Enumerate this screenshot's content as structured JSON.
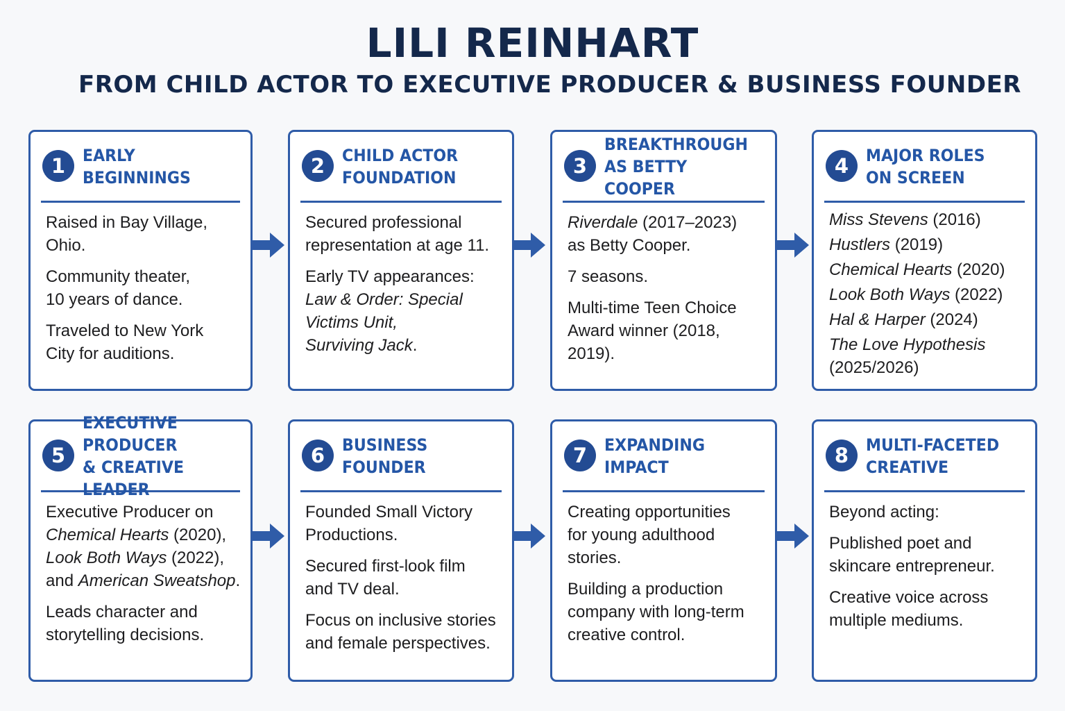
{
  "title": "LILI REINHART",
  "subtitle": "FROM CHILD ACTOR TO EXECUTIVE PRODUCER & BUSINESS FOUNDER",
  "accent_color": "#2f5ca8",
  "steps": [
    {
      "number": "1",
      "title": "EARLY BEGINNINGS",
      "paragraphs": [
        [
          {
            "t": "Raised in Bay Village,\nOhio."
          }
        ],
        [
          {
            "t": "Community theater,\n10 years of dance."
          }
        ],
        [
          {
            "t": "Traveled to New York\nCity for auditions."
          }
        ]
      ]
    },
    {
      "number": "2",
      "title": "CHILD ACTOR\nFOUNDATION",
      "paragraphs": [
        [
          {
            "t": "Secured professional\nrepresentation at age 11."
          }
        ],
        [
          {
            "t": "Early TV appearances:\n"
          },
          {
            "t": "Law & Order: Special\nVictims Unit,\nSurviving Jack",
            "i": true
          },
          {
            "t": "."
          }
        ]
      ]
    },
    {
      "number": "3",
      "title": "BREAKTHROUGH\nAS BETTY COOPER",
      "paragraphs": [
        [
          {
            "t": "Riverdale",
            "i": true
          },
          {
            "t": " (2017–2023)\nas Betty Cooper."
          }
        ],
        [
          {
            "t": "7 seasons."
          }
        ],
        [
          {
            "t": "Multi-time Teen Choice\nAward winner (2018, 2019)."
          }
        ]
      ]
    },
    {
      "number": "4",
      "title": "MAJOR ROLES\nON SCREEN",
      "tight": true,
      "paragraphs": [
        [
          {
            "t": "Miss Stevens",
            "i": true
          },
          {
            "t": " (2016)"
          }
        ],
        [
          {
            "t": "Hustlers",
            "i": true
          },
          {
            "t": " (2019)"
          }
        ],
        [
          {
            "t": "Chemical Hearts",
            "i": true
          },
          {
            "t": " (2020)"
          }
        ],
        [
          {
            "t": "Look Both Ways",
            "i": true
          },
          {
            "t": " (2022)"
          }
        ],
        [
          {
            "t": "Hal & Harper",
            "i": true
          },
          {
            "t": " (2024)"
          }
        ],
        [
          {
            "t": "The Love Hypothesis",
            "i": true
          },
          {
            "t": "\n(2025/2026)"
          }
        ]
      ]
    },
    {
      "number": "5",
      "title": "EXECUTIVE PRODUCER\n& CREATIVE LEADER",
      "paragraphs": [
        [
          {
            "t": "Executive Producer on\n"
          },
          {
            "t": "Chemical Hearts",
            "i": true
          },
          {
            "t": " (2020),\n"
          },
          {
            "t": "Look Both Ways",
            "i": true
          },
          {
            "t": " (2022),\nand "
          },
          {
            "t": "American Sweatshop",
            "i": true
          },
          {
            "t": "."
          }
        ],
        [
          {
            "t": "Leads character and\nstorytelling decisions."
          }
        ]
      ]
    },
    {
      "number": "6",
      "title": "BUSINESS FOUNDER",
      "paragraphs": [
        [
          {
            "t": "Founded Small Victory\nProductions."
          }
        ],
        [
          {
            "t": "Secured first-look film\nand TV deal."
          }
        ],
        [
          {
            "t": "Focus on inclusive stories\nand female perspectives."
          }
        ]
      ]
    },
    {
      "number": "7",
      "title": "EXPANDING IMPACT",
      "paragraphs": [
        [
          {
            "t": "Creating opportunities\nfor young adulthood\nstories."
          }
        ],
        [
          {
            "t": "Building a production\ncompany with long-term\ncreative control."
          }
        ]
      ]
    },
    {
      "number": "8",
      "title": "MULTI-FACETED\nCREATIVE",
      "paragraphs": [
        [
          {
            "t": "Beyond acting:"
          }
        ],
        [
          {
            "t": "Published poet and\nskincare entrepreneur."
          }
        ],
        [
          {
            "t": "Creative voice across\nmultiple mediums."
          }
        ]
      ]
    }
  ]
}
